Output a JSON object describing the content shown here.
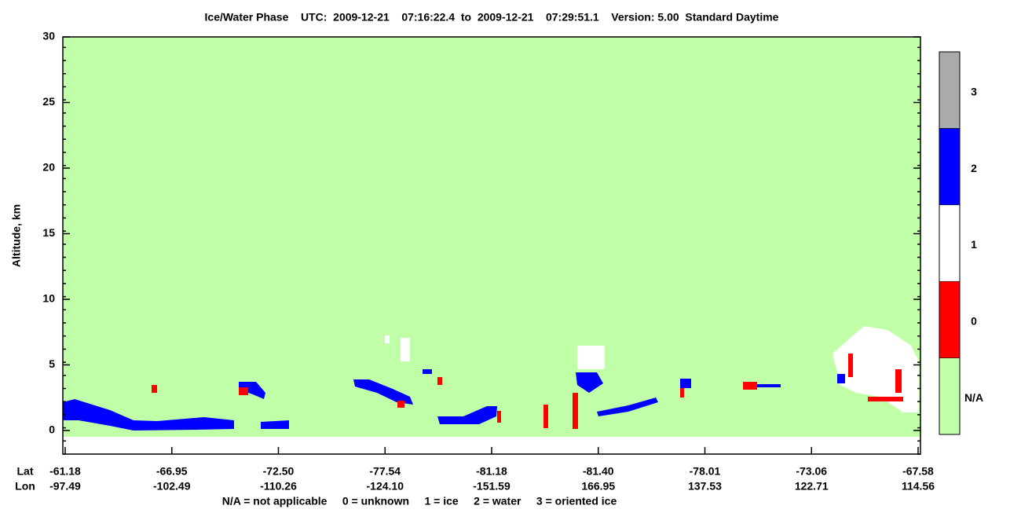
{
  "chart_data": {
    "type": "curtain",
    "title": "Ice/Water Phase    UTC:  2009-12-21    07:16:22.4  to  2009-12-21    07:29:51.1    Version: 5.00  Standard Daytime",
    "y_label": "Altitude, km",
    "ylim": [
      -1.8,
      30
    ],
    "yticks": [
      0,
      5,
      10,
      15,
      20,
      25,
      30
    ],
    "x_rows": {
      "lat_label": "Lat",
      "lon_label": "Lon",
      "lat": [
        -61.18,
        -66.95,
        -72.5,
        -77.54,
        -81.18,
        -81.4,
        -78.01,
        -73.06,
        -67.58
      ],
      "lat_labels": [
        "-61.18",
        "-66.95",
        "-72.50",
        "-77.54",
        "-81.18",
        "-81.40",
        "-78.01",
        "-73.06",
        "-67.58"
      ],
      "lon": [
        -97.49,
        -102.49,
        -110.26,
        -124.1,
        -151.59,
        166.95,
        137.53,
        122.71,
        114.56
      ],
      "lon_labels": [
        "-97.49",
        "-102.49",
        "-110.26",
        "-124.10",
        "-151.59",
        "166.95",
        "137.53",
        "122.71",
        "114.56"
      ]
    },
    "colorbar": {
      "labels": [
        "N/A",
        "0",
        "1",
        "2",
        "3"
      ],
      "colors": [
        "#c0ffa8",
        "#ff0000",
        "#ffffff",
        "#0000ff",
        "#aaaaaa"
      ]
    },
    "caption": "N/A = not applicable     0 = unknown     1 = ice     2 = water     3 = oriented ice"
  }
}
